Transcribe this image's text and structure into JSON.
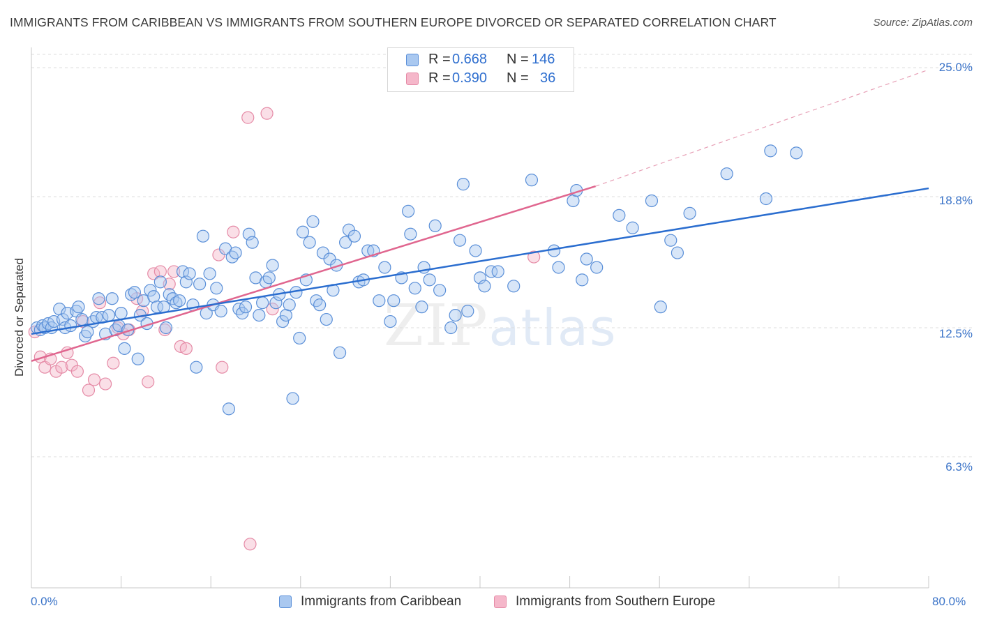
{
  "title": "IMMIGRANTS FROM CARIBBEAN VS IMMIGRANTS FROM SOUTHERN EUROPE DIVORCED OR SEPARATED CORRELATION CHART",
  "source": "Source: ZipAtlas.com",
  "watermark": {
    "zip": "ZIP",
    "atlas": "atlas"
  },
  "legend_top": [
    {
      "r_label": "R =",
      "r_value": "0.668",
      "n_label": "N =",
      "n_value": "146"
    },
    {
      "r_label": "R =",
      "r_value": "0.390",
      "n_label": "N =",
      "n_value": "36"
    }
  ],
  "colors": {
    "blue_fill": "#a9c8f0",
    "blue_stroke": "#5a8fd8",
    "blue_line": "#2a6dcf",
    "pink_fill": "#f5b7ca",
    "pink_stroke": "#e58aa6",
    "pink_line": "#e0668f",
    "tick_text": "#3a73c8",
    "grid": "#dcdcdc"
  },
  "chart_data": {
    "type": "scatter",
    "title": "IMMIGRANTS FROM CARIBBEAN VS IMMIGRANTS FROM SOUTHERN EUROPE DIVORCED OR SEPARATED CORRELATION CHART",
    "xlabel": "",
    "ylabel": "Divorced or Separated",
    "xlim": [
      0,
      80
    ],
    "ylim": [
      0,
      26.3
    ],
    "x_tick_labels": [
      "0.0%",
      "80.0%"
    ],
    "y_ticks": [
      6.3,
      12.5,
      18.8,
      25.0
    ],
    "y_tick_labels": [
      "6.3%",
      "12.5%",
      "18.8%",
      "25.0%"
    ],
    "grid": true,
    "legend_placement": "bottom",
    "series": [
      {
        "name": "Immigrants from Caribbean",
        "color": "#5a8fd8",
        "trend": {
          "x": [
            0,
            80
          ],
          "y": [
            12.2,
            19.2
          ]
        },
        "points": [
          [
            0.5,
            12.5
          ],
          [
            0.8,
            12.4
          ],
          [
            1.0,
            12.6
          ],
          [
            1.2,
            12.5
          ],
          [
            1.5,
            12.7
          ],
          [
            1.8,
            12.5
          ],
          [
            2.0,
            12.8
          ],
          [
            2.5,
            13.4
          ],
          [
            2.8,
            12.9
          ],
          [
            3.0,
            12.5
          ],
          [
            3.2,
            13.2
          ],
          [
            3.5,
            12.6
          ],
          [
            4.0,
            13.3
          ],
          [
            4.2,
            13.5
          ],
          [
            4.5,
            12.9
          ],
          [
            4.8,
            12.1
          ],
          [
            5.0,
            12.3
          ],
          [
            5.5,
            12.8
          ],
          [
            5.8,
            13.0
          ],
          [
            6.0,
            13.9
          ],
          [
            6.3,
            13.0
          ],
          [
            6.6,
            12.2
          ],
          [
            6.9,
            13.1
          ],
          [
            7.2,
            13.9
          ],
          [
            7.5,
            12.4
          ],
          [
            7.8,
            12.6
          ],
          [
            8.0,
            13.2
          ],
          [
            8.3,
            11.5
          ],
          [
            8.6,
            12.4
          ],
          [
            8.9,
            14.1
          ],
          [
            9.2,
            14.2
          ],
          [
            9.5,
            11.0
          ],
          [
            9.7,
            13.1
          ],
          [
            10.0,
            13.8
          ],
          [
            10.3,
            12.7
          ],
          [
            10.6,
            14.3
          ],
          [
            10.9,
            14.0
          ],
          [
            11.2,
            13.5
          ],
          [
            11.5,
            14.7
          ],
          [
            11.8,
            13.5
          ],
          [
            12.0,
            12.5
          ],
          [
            12.3,
            14.1
          ],
          [
            12.6,
            13.9
          ],
          [
            12.9,
            13.7
          ],
          [
            13.2,
            13.8
          ],
          [
            13.5,
            15.2
          ],
          [
            13.8,
            14.7
          ],
          [
            14.1,
            15.1
          ],
          [
            14.4,
            13.6
          ],
          [
            14.7,
            10.6
          ],
          [
            15.0,
            14.6
          ],
          [
            15.3,
            16.9
          ],
          [
            15.6,
            13.2
          ],
          [
            15.9,
            15.1
          ],
          [
            16.2,
            13.6
          ],
          [
            16.5,
            14.4
          ],
          [
            16.9,
            13.3
          ],
          [
            17.3,
            16.3
          ],
          [
            17.6,
            8.6
          ],
          [
            17.9,
            15.9
          ],
          [
            18.2,
            16.1
          ],
          [
            18.5,
            13.4
          ],
          [
            18.8,
            13.2
          ],
          [
            19.1,
            13.5
          ],
          [
            19.4,
            17.0
          ],
          [
            19.7,
            16.6
          ],
          [
            20.0,
            14.9
          ],
          [
            20.3,
            13.1
          ],
          [
            20.6,
            13.7
          ],
          [
            20.9,
            14.7
          ],
          [
            21.2,
            14.9
          ],
          [
            21.5,
            15.5
          ],
          [
            21.8,
            13.7
          ],
          [
            22.1,
            14.1
          ],
          [
            22.4,
            12.8
          ],
          [
            22.7,
            13.1
          ],
          [
            23.0,
            13.6
          ],
          [
            23.3,
            9.1
          ],
          [
            23.6,
            14.2
          ],
          [
            23.9,
            12.0
          ],
          [
            24.2,
            17.1
          ],
          [
            24.5,
            14.8
          ],
          [
            24.8,
            16.6
          ],
          [
            25.1,
            17.6
          ],
          [
            25.4,
            13.8
          ],
          [
            25.7,
            13.6
          ],
          [
            26.0,
            16.1
          ],
          [
            26.3,
            12.9
          ],
          [
            26.6,
            15.8
          ],
          [
            26.9,
            14.3
          ],
          [
            27.2,
            15.5
          ],
          [
            27.5,
            11.3
          ],
          [
            28.0,
            16.6
          ],
          [
            28.3,
            17.2
          ],
          [
            28.8,
            16.9
          ],
          [
            29.2,
            14.7
          ],
          [
            29.6,
            14.8
          ],
          [
            30.0,
            16.2
          ],
          [
            30.5,
            16.2
          ],
          [
            31.0,
            13.8
          ],
          [
            31.5,
            15.4
          ],
          [
            32.0,
            12.8
          ],
          [
            32.3,
            13.8
          ],
          [
            33.0,
            14.9
          ],
          [
            33.6,
            18.1
          ],
          [
            33.8,
            17.0
          ],
          [
            34.2,
            14.4
          ],
          [
            34.8,
            13.5
          ],
          [
            35.0,
            15.4
          ],
          [
            35.5,
            14.8
          ],
          [
            36.0,
            17.4
          ],
          [
            36.4,
            14.3
          ],
          [
            37.4,
            12.5
          ],
          [
            37.8,
            13.1
          ],
          [
            38.2,
            16.7
          ],
          [
            38.5,
            19.4
          ],
          [
            38.9,
            13.3
          ],
          [
            39.6,
            16.2
          ],
          [
            40.0,
            14.9
          ],
          [
            40.4,
            14.5
          ],
          [
            41.0,
            15.2
          ],
          [
            41.6,
            15.2
          ],
          [
            43.0,
            14.5
          ],
          [
            44.6,
            19.6
          ],
          [
            46.6,
            16.2
          ],
          [
            47.0,
            15.4
          ],
          [
            48.3,
            18.6
          ],
          [
            48.6,
            19.1
          ],
          [
            49.1,
            14.8
          ],
          [
            49.5,
            15.8
          ],
          [
            50.4,
            15.4
          ],
          [
            52.4,
            17.9
          ],
          [
            53.6,
            17.3
          ],
          [
            55.3,
            18.6
          ],
          [
            56.1,
            13.5
          ],
          [
            57.0,
            16.7
          ],
          [
            57.6,
            16.1
          ],
          [
            58.7,
            18.0
          ],
          [
            62.0,
            19.9
          ],
          [
            65.5,
            18.7
          ],
          [
            65.9,
            21.0
          ],
          [
            68.2,
            20.9
          ]
        ]
      },
      {
        "name": "Immigrants from Southern Europe",
        "color": "#e58aa6",
        "trend": {
          "x": [
            0,
            50.3
          ],
          "y": [
            10.9,
            19.3
          ],
          "extension": {
            "x": [
              50.3,
              80
            ],
            "y": [
              19.3,
              24.9
            ]
          }
        },
        "points": [
          [
            0.3,
            12.3
          ],
          [
            0.8,
            11.1
          ],
          [
            1.2,
            10.6
          ],
          [
            1.7,
            11.0
          ],
          [
            2.2,
            10.4
          ],
          [
            2.7,
            10.6
          ],
          [
            3.2,
            11.3
          ],
          [
            3.6,
            10.7
          ],
          [
            4.1,
            10.4
          ],
          [
            4.6,
            12.8
          ],
          [
            5.1,
            9.5
          ],
          [
            5.6,
            10.0
          ],
          [
            6.1,
            13.7
          ],
          [
            6.6,
            9.8
          ],
          [
            7.3,
            10.8
          ],
          [
            7.7,
            12.5
          ],
          [
            8.2,
            12.2
          ],
          [
            8.7,
            12.4
          ],
          [
            9.4,
            13.9
          ],
          [
            9.9,
            13.3
          ],
          [
            10.4,
            9.9
          ],
          [
            10.9,
            15.1
          ],
          [
            11.5,
            15.2
          ],
          [
            11.9,
            12.4
          ],
          [
            12.3,
            14.6
          ],
          [
            12.7,
            15.2
          ],
          [
            13.3,
            11.6
          ],
          [
            13.8,
            11.5
          ],
          [
            16.7,
            16.0
          ],
          [
            17.0,
            10.6
          ],
          [
            18.0,
            17.1
          ],
          [
            19.3,
            22.6
          ],
          [
            21.0,
            22.8
          ],
          [
            21.5,
            13.4
          ],
          [
            19.5,
            2.1
          ],
          [
            44.8,
            15.9
          ]
        ]
      }
    ]
  },
  "legend_bottom": [
    "Immigrants from Caribbean",
    "Immigrants from Southern Europe"
  ]
}
